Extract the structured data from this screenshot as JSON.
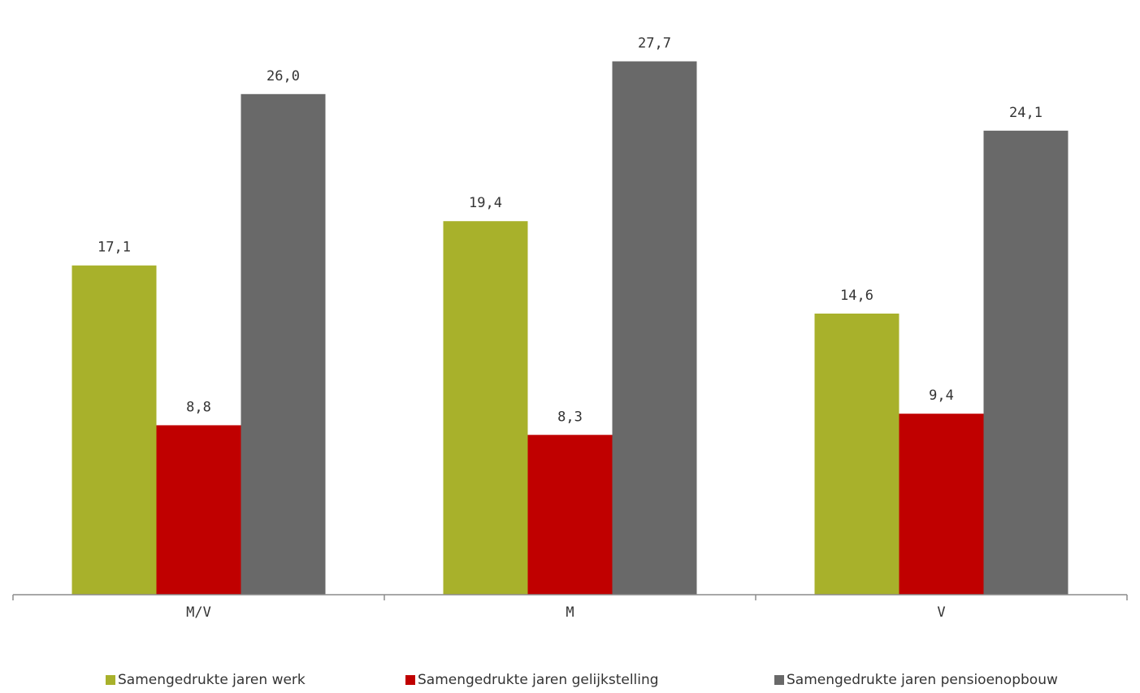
{
  "chart_data": {
    "type": "bar",
    "categories": [
      "M/V",
      "M",
      "V"
    ],
    "series": [
      {
        "name": "Samengedrukte jaren werk",
        "color": "#a8b12b",
        "values": [
          17.1,
          19.4,
          14.6
        ],
        "labels": [
          "17,1",
          "19,4",
          "14,6"
        ]
      },
      {
        "name": "Samengedrukte jaren gelijkstelling",
        "color": "#c00000",
        "values": [
          8.8,
          8.3,
          9.4
        ],
        "labels": [
          "8,8",
          "8,3",
          "9,4"
        ]
      },
      {
        "name": "Samengedrukte jaren pensioenopbouw",
        "color": "#696969",
        "values": [
          26.0,
          27.7,
          24.1
        ],
        "labels": [
          "26,0",
          "27,7",
          "24,1"
        ]
      }
    ],
    "ylim": [
      0,
      29
    ],
    "grid": false,
    "legend_position": "bottom"
  }
}
